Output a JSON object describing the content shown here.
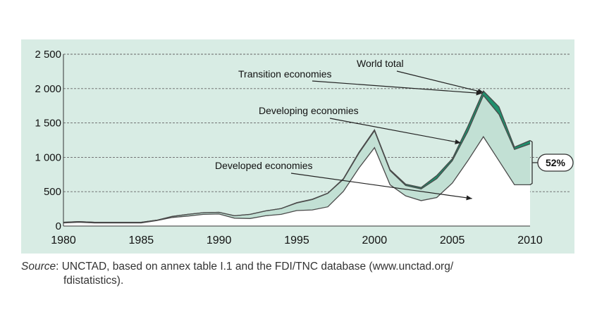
{
  "colors": {
    "background_panel": "#d8ece4",
    "developing_band": "#c2e0d4",
    "developed_area": "#ffffff",
    "transition_band": "#1f8f6c",
    "line": "#4a4a4a",
    "grid": "#666666"
  },
  "chart_data": {
    "type": "area",
    "title": "",
    "xlabel": "",
    "ylabel": "",
    "xlim": [
      1980,
      2010
    ],
    "ylim": [
      0,
      2500
    ],
    "x_ticks": [
      1980,
      1985,
      1990,
      1995,
      2000,
      2005,
      2010
    ],
    "x_tick_labels": [
      "1980",
      "1985",
      "1990",
      "1995",
      "2000",
      "2005",
      "2010"
    ],
    "y_ticks": [
      0,
      500,
      1000,
      1500,
      2000,
      2500
    ],
    "y_tick_labels": [
      "0",
      "500",
      "1 000",
      "1 500",
      "2 000",
      "2 500"
    ],
    "grid": "horizontal dashed",
    "x": [
      1980,
      1981,
      1982,
      1983,
      1984,
      1985,
      1986,
      1987,
      1988,
      1989,
      1990,
      1991,
      1992,
      1993,
      1994,
      1995,
      1996,
      1997,
      1998,
      1999,
      2000,
      2001,
      2002,
      2003,
      2004,
      2005,
      2006,
      2007,
      2008,
      2009,
      2010
    ],
    "series": [
      {
        "name": "Developed economies",
        "values": [
          45,
          55,
          45,
          45,
          45,
          45,
          80,
          125,
          145,
          170,
          175,
          115,
          110,
          150,
          170,
          225,
          235,
          280,
          505,
          845,
          1140,
          600,
          440,
          370,
          415,
          625,
          950,
          1300,
          950,
          600,
          600
        ]
      },
      {
        "name": "Developing economies",
        "values": [
          55,
          65,
          55,
          55,
          55,
          55,
          85,
          140,
          170,
          195,
          200,
          150,
          170,
          220,
          255,
          335,
          385,
          475,
          680,
          1060,
          1385,
          805,
          590,
          540,
          690,
          950,
          1375,
          1900,
          1625,
          1115,
          1195
        ]
      },
      {
        "name": "Transition economies",
        "values": [
          55,
          65,
          55,
          55,
          55,
          55,
          85,
          140,
          170,
          195,
          200,
          150,
          170,
          220,
          255,
          340,
          390,
          480,
          690,
          1075,
          1400,
          820,
          610,
          560,
          735,
          980,
          1450,
          1965,
          1735,
          1150,
          1245
        ]
      },
      {
        "name": "World total",
        "values": [
          55,
          65,
          55,
          55,
          55,
          55,
          85,
          140,
          170,
          195,
          200,
          150,
          170,
          220,
          255,
          340,
          390,
          480,
          690,
          1075,
          1400,
          820,
          610,
          560,
          735,
          980,
          1450,
          1965,
          1735,
          1150,
          1245
        ]
      }
    ],
    "annotations": [
      {
        "text": "World total",
        "points_to_year": 2007
      },
      {
        "text": "Transition economies",
        "points_to_year": 2007
      },
      {
        "text": "Developing economies",
        "points_to_year": 2006
      },
      {
        "text": "Developed economies",
        "points_to_year": 2006
      },
      {
        "text": "52%",
        "marks_year": 2010
      }
    ]
  },
  "source": {
    "label": "Source",
    "line1": ": UNCTAD, based on annex table I.1 and the FDI/TNC database (www.unctad.org/",
    "line2": "fdistatistics)."
  }
}
